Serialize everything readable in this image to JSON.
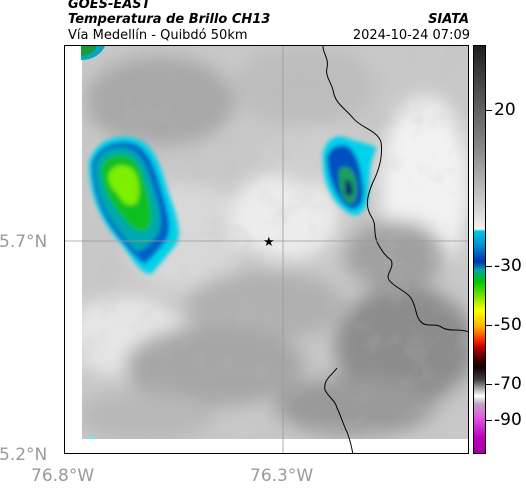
{
  "header": {
    "source": "GOES-EAST",
    "product": "Temperatura de Brillo CH13",
    "route": "Vía Medellín - Quibdó 50km",
    "organization": "SIATA",
    "timestamp": "2024-10-24 07:09"
  },
  "map": {
    "lat_labels": [
      "5.7°N",
      "5.2°N"
    ],
    "lon_labels": [
      "76.8°W",
      "76.3°W"
    ],
    "marker": "star-marker",
    "gridline_color": "#9a9a9a"
  },
  "colorbar": {
    "ticks": [
      "20",
      "-30",
      "-50",
      "-70",
      "-90"
    ],
    "colors": {
      "warm_top": "#1e1e1e",
      "warm_bottom": "#f0f0f0",
      "cyan": "#00c8e6",
      "blue": "#0030b4",
      "green": "#00c800",
      "yellow": "#ffff00",
      "red": "#ff0000",
      "dark": "#140000",
      "magenta": "#c000c0"
    }
  }
}
